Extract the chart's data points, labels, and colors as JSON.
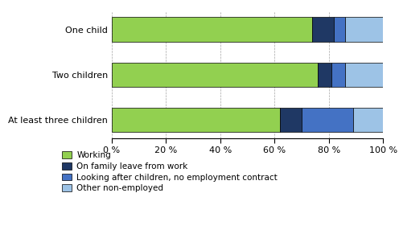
{
  "categories": [
    "One child",
    "Two children",
    "At least three children"
  ],
  "series": {
    "Working": [
      74,
      76,
      62
    ],
    "On family leave from work": [
      8,
      5,
      8
    ],
    "Looking after children, no employment contract": [
      4,
      5,
      19
    ],
    "Other non-employed": [
      14,
      14,
      11
    ]
  },
  "colors": {
    "Working": "#92d050",
    "On family leave from work": "#1f3864",
    "Looking after children, no employment contract": "#4472c4",
    "Other non-employed": "#9dc3e6"
  },
  "legend_labels": [
    "Working",
    "On family leave from work",
    "Looking after children, no employment contract",
    "Other non-employed"
  ],
  "xlim": [
    0,
    100
  ],
  "xticks": [
    0,
    20,
    40,
    60,
    80,
    100
  ],
  "background_color": "#ffffff",
  "bar_height": 0.55,
  "figsize": [
    4.96,
    2.86
  ],
  "dpi": 100
}
